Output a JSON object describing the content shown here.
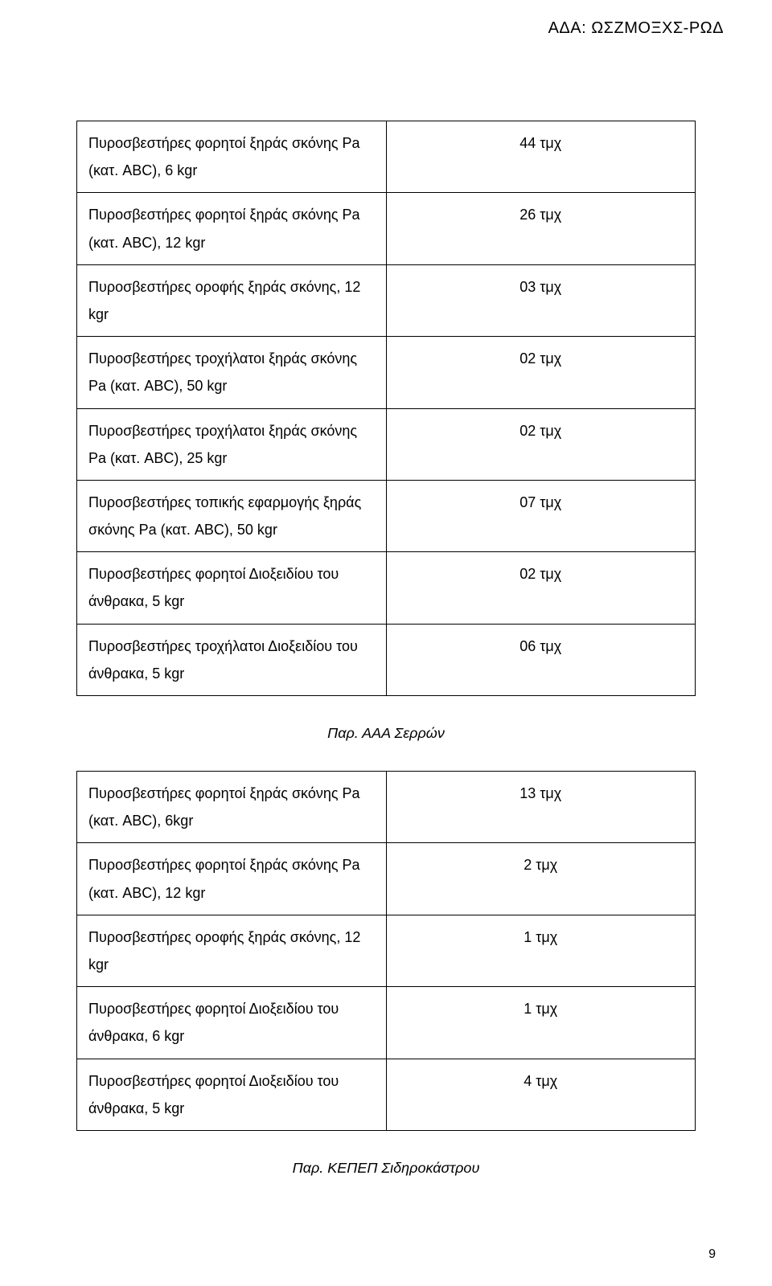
{
  "header": {
    "code": "ΑΔΑ: ΩΣΖΜΟΞΧΣ-ΡΩΔ"
  },
  "table1": {
    "rows": [
      {
        "label": "Πυροσβεστήρες φορητοί  ξηράς σκόνης Pa (κατ. ABC), 6 kgr",
        "qty": "44  τμχ"
      },
      {
        "label": "Πυροσβεστήρες φορητοί ξηράς σκόνης Pa (κατ. ABC), 12 kgr",
        "qty": "26  τμχ"
      },
      {
        "label": "Πυροσβεστήρες οροφής ξηράς σκόνης, 12 kgr",
        "qty": "03  τμχ"
      },
      {
        "label": "Πυροσβεστήρες τροχήλατοι ξηράς σκόνης Pa (κατ. ABC), 50 kgr",
        "qty": "02  τμχ"
      },
      {
        "label": "Πυροσβεστήρες τροχήλατοι ξηράς σκόνης Pa (κατ. ABC), 25 kgr",
        "qty": "02  τμχ"
      },
      {
        "label": "Πυροσβεστήρες τοπικής εφαρμογής ξηράς σκόνης Pa (κατ. ABC), 50 kgr",
        "qty": "07  τμχ"
      },
      {
        "label": "Πυροσβεστήρες φορητοί Διοξειδίου του άνθρακα, 5 kgr",
        "qty": "02 τμχ"
      },
      {
        "label": "Πυροσβεστήρες τροχήλατοι Διοξειδίου του άνθρακα, 5 kgr",
        "qty": "06 τμχ"
      }
    ]
  },
  "heading1": "Παρ. ΑΑΑ Σερρών",
  "table2": {
    "rows": [
      {
        "label": "Πυροσβεστήρες φορητοί ξηράς σκόνης Pa (κατ. ABC), 6kgr",
        "qty": "13  τμχ"
      },
      {
        "label": "Πυροσβεστήρες φορητοί  ξηράς σκόνης Pa (κατ. ABC), 12 kgr",
        "qty": "2  τμχ"
      },
      {
        "label": "Πυροσβεστήρες οροφής ξηράς σκόνης, 12 kgr",
        "qty": "1  τμχ"
      },
      {
        "label": "Πυροσβεστήρες φορητοί  Διοξειδίου του άνθρακα, 6 kgr",
        "qty": "1  τμχ"
      },
      {
        "label": "Πυροσβεστήρες φορητοί Διοξειδίου του άνθρακα, 5 kgr",
        "qty": "4 τμχ"
      }
    ]
  },
  "heading2": "Παρ. ΚΕΠΕΠ Σιδηροκάστρου",
  "page": "9"
}
